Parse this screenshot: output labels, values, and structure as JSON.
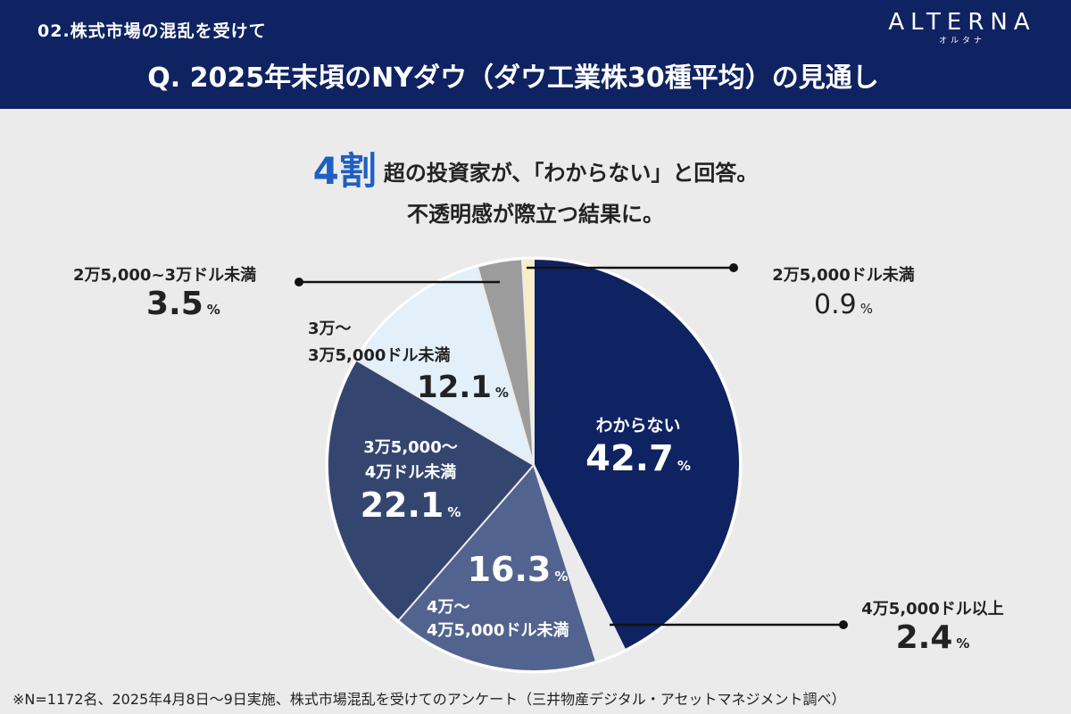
{
  "header": {
    "subtitle": "02.株式市場の混乱を受けて",
    "title": "Q. 2025年末頃のNYダウ（ダウ工業株30種平均）の見通し",
    "logo": "ALTERNA",
    "logo_sub": "オルタナ"
  },
  "headline": {
    "highlight": "4割",
    "line1": "超の投資家が、「わからない」と回答。",
    "line2": "不透明感が際立つ結果に。"
  },
  "colors": {
    "header_bg": "#0f2262",
    "accent": "#1f5fc2"
  },
  "percent_sign": "%",
  "chart_data": {
    "type": "pie",
    "title": "Q. 2025年末頃のNYダウ（ダウ工業株30種平均）の見通し",
    "unit": "%",
    "slices": [
      {
        "label": "わからない",
        "value": 42.7,
        "display": "42.7",
        "color": "#0f2262"
      },
      {
        "label": "4万5,000ドル以上",
        "value": 2.4,
        "display": "2.4",
        "color": "#ebebeb"
      },
      {
        "label": "4万～4万5,000ドル未満",
        "value": 16.3,
        "display": "16.3",
        "color": "#52638f"
      },
      {
        "label": "3万5,000～4万ドル未満",
        "value": 22.1,
        "display": "22.1",
        "color": "#34466f"
      },
      {
        "label": "3万～3万5,000ドル未満",
        "value": 12.1,
        "display": "12.1",
        "color": "#e3f0fa"
      },
      {
        "label": "2万5,000~3万ドル未満",
        "value": 3.5,
        "display": "3.5",
        "color": "#9c9c9c"
      },
      {
        "label": "2万5,000ドル未満",
        "value": 0.9,
        "display": "0.9",
        "color": "#f7eec4"
      }
    ],
    "label_lines": {
      "s0": [
        "わからない"
      ],
      "s1": [
        "4万5,000ドル以上"
      ],
      "s2": [
        "4万～",
        "4万5,000ドル未満"
      ],
      "s3": [
        "3万5,000～",
        "4万ドル未満"
      ],
      "s4": [
        "3万～",
        "3万5,000ドル未満"
      ],
      "s5": [
        "2万5,000~3万ドル未満"
      ],
      "s6": [
        "2万5,000ドル未満"
      ]
    }
  },
  "footnote": "※N=1172名、2025年4月8日〜9日実施、株式市場混乱を受けてのアンケート（三井物産デジタル・アセットマネジメント調べ）"
}
